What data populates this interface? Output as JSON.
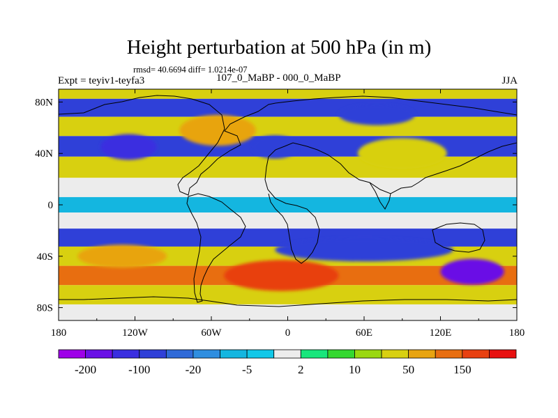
{
  "title": "Height perturbation at 500 hPa (in m)",
  "stats_line": "rmsd= 40.6694  diff= 1.0214e-07",
  "left_label": "Expt = teyiv1-teyfa3",
  "center_label": "107_0_MaBP - 000_0_MaBP",
  "right_label": "JJA",
  "map": {
    "lon_range": [
      -180,
      180
    ],
    "lat_range": [
      -90,
      90
    ],
    "x_ticks": [
      "180",
      "120W",
      "60W",
      "0",
      "60E",
      "120E",
      "180"
    ],
    "y_ticks": [
      "80N",
      "40N",
      "0",
      "40S",
      "80S"
    ],
    "field_bands": [
      {
        "lat": 90,
        "value": 30
      },
      {
        "lat": 75,
        "value": -60
      },
      {
        "lat": 62,
        "value": 40
      },
      {
        "lat": 45,
        "value": -80
      },
      {
        "lat": 30,
        "value": 20
      },
      {
        "lat": 12,
        "value": 0
      },
      {
        "lat": 0,
        "value": -8
      },
      {
        "lat": -12,
        "value": 0
      },
      {
        "lat": -25,
        "value": -60
      },
      {
        "lat": -40,
        "value": 40
      },
      {
        "lat": -55,
        "value": 120
      },
      {
        "lat": -70,
        "value": 40
      },
      {
        "lat": -85,
        "value": 0
      }
    ],
    "features": [
      {
        "name": "high-north-atlantic",
        "lon": -55,
        "lat": 58,
        "rx": 30,
        "ry": 12,
        "value": 80
      },
      {
        "name": "low-north-pacific",
        "lon": -125,
        "lat": 45,
        "rx": 22,
        "ry": 10,
        "value": -120
      },
      {
        "name": "low-north-atlantic",
        "lon": -10,
        "lat": 45,
        "rx": 18,
        "ry": 9,
        "value": -60
      },
      {
        "name": "high-asia",
        "lon": 90,
        "lat": 40,
        "rx": 35,
        "ry": 12,
        "value": 30
      },
      {
        "name": "low-siberia",
        "lon": 70,
        "lat": 70,
        "rx": 30,
        "ry": 8,
        "value": -80
      },
      {
        "name": "high-south-atlantic",
        "lon": -5,
        "lat": -55,
        "rx": 45,
        "ry": 12,
        "value": 170
      },
      {
        "name": "low-south-pacific",
        "lon": 145,
        "lat": -52,
        "rx": 25,
        "ry": 10,
        "value": -170
      },
      {
        "name": "low-indian-ocean",
        "lon": 60,
        "lat": -35,
        "rx": 70,
        "ry": 9,
        "value": -100
      },
      {
        "name": "high-pacific-south",
        "lon": -130,
        "lat": -40,
        "rx": 35,
        "ry": 9,
        "value": 50
      }
    ]
  },
  "colorbar": {
    "colors": [
      "#9e00e8",
      "#6a10e6",
      "#3a2ee0",
      "#2f40d8",
      "#2f6ad8",
      "#2f8ee0",
      "#14b6e0",
      "#12c8e8",
      "#ececec",
      "#18e67c",
      "#34d830",
      "#9ad810",
      "#d8d010",
      "#e8a410",
      "#e86e10",
      "#e84010",
      "#e81010"
    ],
    "levels": [
      -200,
      -150,
      -100,
      -50,
      -20,
      -10,
      -5,
      -2,
      2,
      5,
      10,
      20,
      50,
      100,
      150,
      200
    ],
    "labels": [
      "-200",
      "-100",
      "-20",
      "-5",
      "2",
      "10",
      "50",
      "150"
    ]
  }
}
